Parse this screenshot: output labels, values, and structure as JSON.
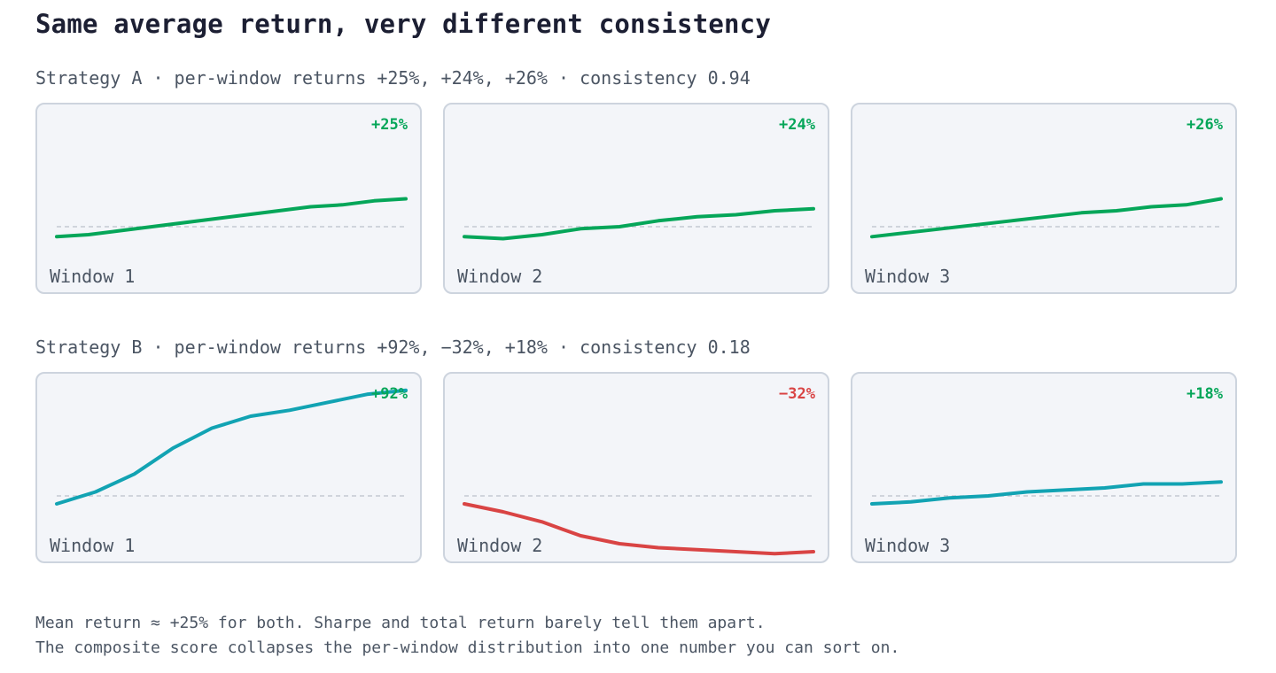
{
  "title": "Same average return, very different consistency",
  "colors": {
    "positive_text": "#05a659",
    "negative": "#d94444",
    "strategy_a_line": "#05a659",
    "strategy_b_line": "#12a3b3",
    "baseline": "#c4c9d3"
  },
  "chart_data": [
    {
      "type": "line",
      "strategy": "Strategy A",
      "label": "Strategy A · per-window returns +25%, +24%, +26% · consistency 0.94",
      "consistency": 0.94,
      "windows": [
        {
          "name": "Window 1",
          "return_label": "+25%",
          "return_pct": 25,
          "values": [
            -2.5,
            -2,
            -1,
            0,
            1,
            2,
            3,
            4,
            5,
            5.5,
            6.5,
            7
          ]
        },
        {
          "name": "Window 2",
          "return_label": "+24%",
          "return_pct": 24,
          "values": [
            -2.5,
            -3,
            -2,
            -0.5,
            0,
            1.5,
            2.5,
            3,
            4,
            4.5
          ]
        },
        {
          "name": "Window 3",
          "return_label": "+26%",
          "return_pct": 26,
          "values": [
            -2.5,
            -1.5,
            -0.5,
            0.5,
            1.5,
            2.5,
            3.5,
            4,
            5,
            5.5,
            7
          ]
        }
      ]
    },
    {
      "type": "line",
      "strategy": "Strategy B",
      "label": "Strategy B · per-window returns +92%, −32%, +18% · consistency 0.18",
      "consistency": 0.18,
      "windows": [
        {
          "name": "Window 1",
          "return_label": "+92%",
          "return_pct": 92,
          "values": [
            -2,
            1,
            5.5,
            12,
            17,
            20,
            21.5,
            23.5,
            25.5,
            26.5
          ]
        },
        {
          "name": "Window 2",
          "return_label": "−32%",
          "return_pct": -32,
          "values": [
            -2,
            -4,
            -6.5,
            -10,
            -12,
            -13,
            -13.5,
            -14,
            -14.5,
            -14
          ]
        },
        {
          "name": "Window 3",
          "return_label": "+18%",
          "return_pct": 18,
          "values": [
            -2,
            -1.5,
            -0.5,
            0,
            1,
            1.5,
            2,
            3,
            3,
            3.5
          ]
        }
      ]
    }
  ],
  "footnote": [
    "Mean return ≈ +25% for both. Sharpe and total return barely tell them apart.",
    "The composite score collapses the per-window distribution into one number you can sort on."
  ]
}
